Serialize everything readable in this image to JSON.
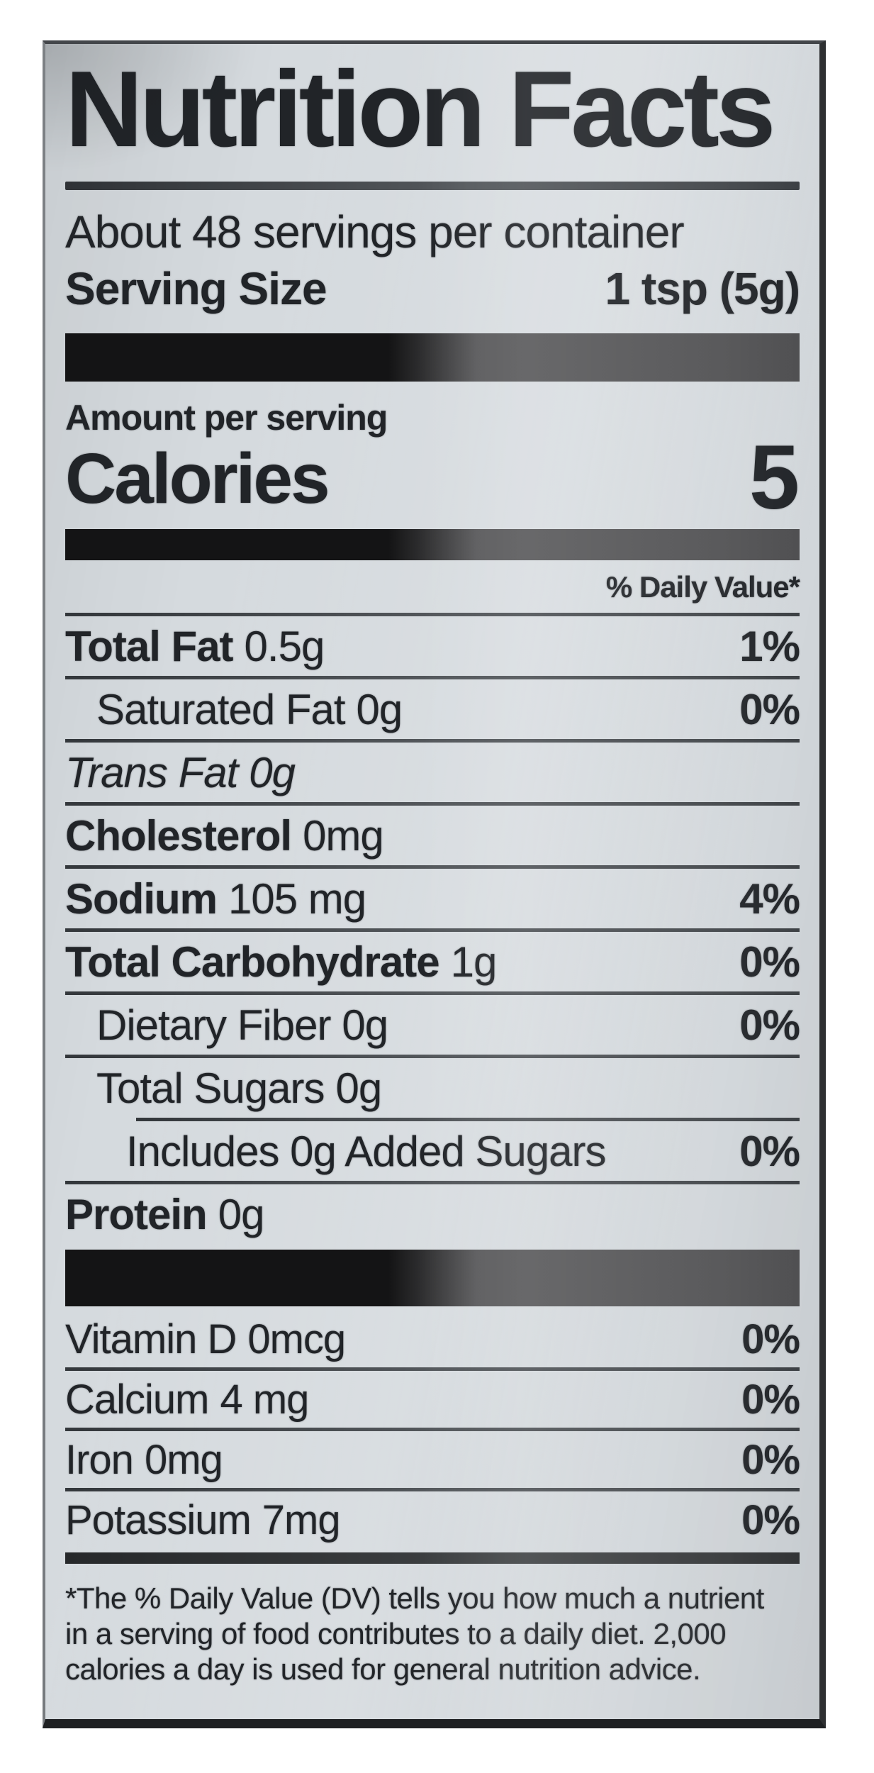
{
  "colors": {
    "paper": "#d5dade",
    "ink": "#212428",
    "rule": "#3d4145",
    "bar_dark": "#141415",
    "bar_gray": "#4e4e50"
  },
  "label": {
    "title": "Nutrition Facts",
    "servings_per_container": "About 48 servings per container",
    "serving_size": {
      "label": "Serving Size",
      "value": "1 tsp (5g)"
    },
    "amount_per_serving": "Amount per serving",
    "calories": {
      "label": "Calories",
      "value": "5"
    },
    "daily_value_header": "% Daily Value*",
    "rows": [
      {
        "name": "Total Fat",
        "amount": "0.5g",
        "pct": "1%"
      },
      {
        "name": "Saturated Fat",
        "amount": "0g",
        "pct": "0%"
      },
      {
        "name": "Trans Fat",
        "amount": "0g",
        "pct": ""
      },
      {
        "name": "Cholesterol",
        "amount": "0mg",
        "pct": ""
      },
      {
        "name": "Sodium",
        "amount": "105 mg",
        "pct": "4%"
      },
      {
        "name": "Total Carbohydrate",
        "amount": "1g",
        "pct": "0%"
      },
      {
        "name": "Dietary Fiber",
        "amount": "0g",
        "pct": "0%"
      },
      {
        "name": "Total Sugars",
        "amount": "0g",
        "pct": ""
      },
      {
        "name": "Includes 0g Added Sugars",
        "amount": "",
        "pct": "0%"
      },
      {
        "name": "Protein",
        "amount": "0g",
        "pct": ""
      }
    ],
    "micros": [
      {
        "name": "Vitamin D",
        "amount": "0mcg",
        "pct": "0%"
      },
      {
        "name": "Calcium",
        "amount": "4 mg",
        "pct": "0%"
      },
      {
        "name": "Iron",
        "amount": "0mg",
        "pct": "0%"
      },
      {
        "name": "Potassium",
        "amount": "7mg",
        "pct": "0%"
      }
    ],
    "footnote": {
      "line1": "*The % Daily Value (DV) tells you how much a nutrient",
      "line2": "in a serving of food contributes to a daily diet. 2,000",
      "line3": "calories a day is used for general nutrition advice."
    }
  }
}
